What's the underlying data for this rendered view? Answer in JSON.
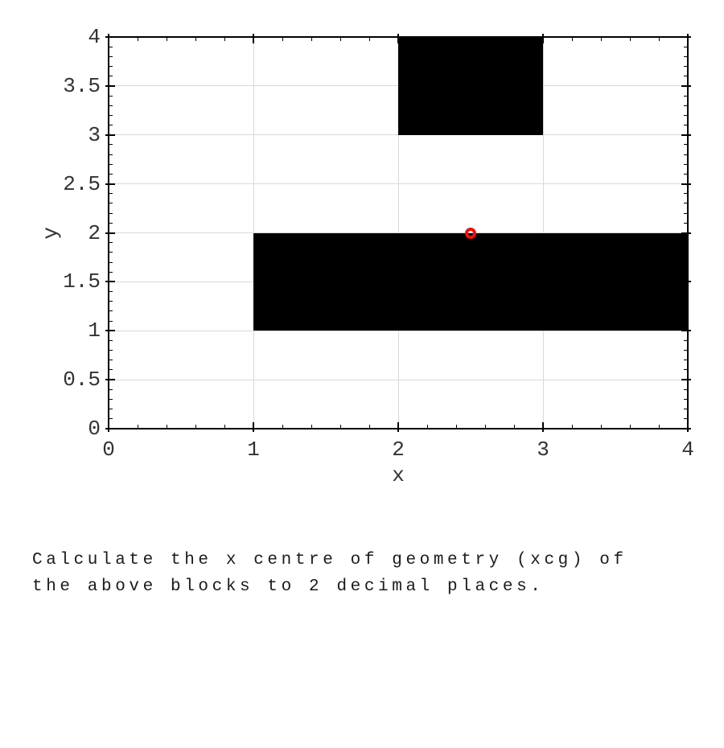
{
  "question": {
    "lines": [
      "Calculate the x centre of geometry (xcg) of",
      "the above blocks to 2 decimal places."
    ]
  },
  "chart_data": {
    "type": "scatter",
    "title": "",
    "xlabel": "x",
    "ylabel": "y",
    "xlim": [
      0,
      4
    ],
    "ylim": [
      0,
      4
    ],
    "xticks": [
      0,
      1,
      2,
      3,
      4
    ],
    "yticks": [
      0,
      0.5,
      1,
      1.5,
      2,
      2.5,
      3,
      3.5,
      4
    ],
    "x_minor_step": 0.2,
    "y_minor_step": 0.1,
    "grid": true,
    "blocks": [
      {
        "x0": 2,
        "x1": 3,
        "y0": 3,
        "y1": 4
      },
      {
        "x0": 1,
        "x1": 4,
        "y0": 1,
        "y1": 2
      }
    ],
    "marker": {
      "x": 2.5,
      "y": 2,
      "shape": "open-circle",
      "color": "#ee1111"
    },
    "colors": {
      "block": "#000000",
      "grid": "#d9d9d9",
      "axis": "#000000",
      "tick_text": "#333333"
    }
  }
}
